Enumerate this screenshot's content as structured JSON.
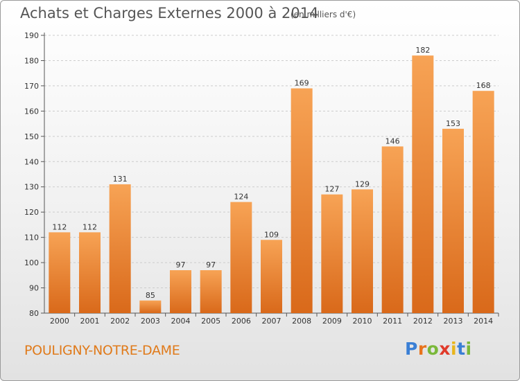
{
  "chart_data": {
    "type": "bar",
    "title": "Achats et Charges Externes 2000 à 2014",
    "subtitle": "(en milliers d'€)",
    "categories": [
      "2000",
      "2001",
      "2002",
      "2003",
      "2004",
      "2005",
      "2006",
      "2007",
      "2008",
      "2009",
      "2010",
      "2011",
      "2012",
      "2013",
      "2014"
    ],
    "values": [
      112,
      112,
      131,
      85,
      97,
      97,
      124,
      109,
      169,
      127,
      129,
      146,
      182,
      153,
      168
    ],
    "ylim": [
      80,
      190
    ],
    "yticks": [
      80,
      90,
      100,
      110,
      120,
      130,
      140,
      150,
      160,
      170,
      180,
      190
    ],
    "grid": true,
    "bar_color": "#f08a2a",
    "xlabel": "",
    "ylabel": ""
  },
  "footer": {
    "commune": "POULIGNY-NOTRE-DAME",
    "logo": {
      "letters": [
        "P",
        "r",
        "o",
        "x",
        "i",
        "t",
        "i"
      ],
      "colors": [
        "#3a7fd5",
        "#e8731c",
        "#7ab83a",
        "#e03a2a",
        "#e8b51c",
        "#3a7fd5",
        "#7ab83a"
      ]
    }
  }
}
